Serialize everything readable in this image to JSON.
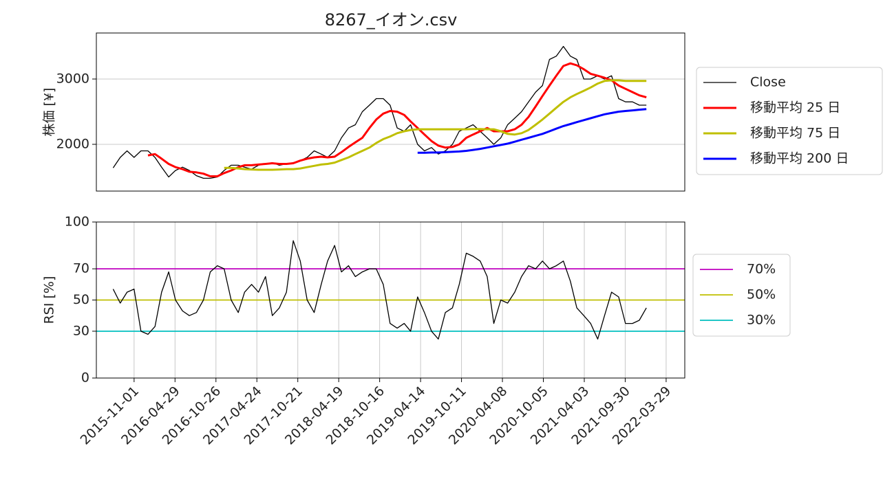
{
  "chart_data": [
    {
      "type": "line",
      "title": "8267_イオン.csv",
      "y_label": "株価 [¥]",
      "x": [
        "2015-08-01",
        "2015-09-01",
        "2015-10-01",
        "2015-11-01",
        "2015-12-01",
        "2016-01-01",
        "2016-02-01",
        "2016-03-01",
        "2016-04-01",
        "2016-05-01",
        "2016-06-01",
        "2016-07-01",
        "2016-08-01",
        "2016-09-01",
        "2016-10-01",
        "2016-11-01",
        "2016-12-01",
        "2017-01-01",
        "2017-02-01",
        "2017-03-01",
        "2017-04-01",
        "2017-05-01",
        "2017-06-01",
        "2017-07-01",
        "2017-08-01",
        "2017-09-01",
        "2017-10-01",
        "2017-11-01",
        "2017-12-01",
        "2018-01-01",
        "2018-02-01",
        "2018-03-01",
        "2018-04-01",
        "2018-05-01",
        "2018-06-01",
        "2018-07-01",
        "2018-08-01",
        "2018-09-01",
        "2018-10-01",
        "2018-11-01",
        "2018-12-01",
        "2019-01-01",
        "2019-02-01",
        "2019-03-01",
        "2019-04-01",
        "2019-05-01",
        "2019-06-01",
        "2019-07-01",
        "2019-08-01",
        "2019-09-01",
        "2019-10-01",
        "2019-11-01",
        "2019-12-01",
        "2020-01-01",
        "2020-02-01",
        "2020-03-01",
        "2020-04-01",
        "2020-05-01",
        "2020-06-01",
        "2020-07-01",
        "2020-08-01",
        "2020-09-01",
        "2020-10-01",
        "2020-11-01",
        "2020-12-01",
        "2021-01-01",
        "2021-02-01",
        "2021-03-01",
        "2021-04-01",
        "2021-05-01",
        "2021-06-01",
        "2021-07-01",
        "2021-08-01",
        "2021-09-01",
        "2021-10-01",
        "2021-11-01",
        "2021-12-01",
        "2022-01-01"
      ],
      "series": [
        {
          "name": "Close",
          "color": "#000000",
          "linewidth": 1.3,
          "values": [
            1640,
            1800,
            1900,
            1800,
            1900,
            1900,
            1800,
            1650,
            1500,
            1600,
            1650,
            1600,
            1520,
            1480,
            1480,
            1500,
            1600,
            1680,
            1680,
            1650,
            1620,
            1680,
            1700,
            1720,
            1680,
            1700,
            1720,
            1750,
            1800,
            1900,
            1850,
            1800,
            1900,
            2100,
            2250,
            2300,
            2500,
            2600,
            2700,
            2700,
            2600,
            2250,
            2200,
            2300,
            2000,
            1900,
            1950,
            1850,
            1900,
            2000,
            2200,
            2250,
            2300,
            2200,
            2100,
            2000,
            2100,
            2300,
            2400,
            2500,
            2650,
            2800,
            2900,
            3300,
            3350,
            3500,
            3350,
            3300,
            3000,
            3000,
            3050,
            3000,
            3050,
            2700,
            2650,
            2650,
            2600,
            2600
          ]
        },
        {
          "name": "移動平均 25 日",
          "color": "#ff0000",
          "linewidth": 3,
          "values": [
            null,
            null,
            null,
            null,
            null,
            1830,
            1850,
            1780,
            1700,
            1650,
            1620,
            1580,
            1570,
            1550,
            1510,
            1510,
            1560,
            1600,
            1650,
            1680,
            1680,
            1690,
            1700,
            1710,
            1700,
            1700,
            1710,
            1750,
            1780,
            1800,
            1810,
            1800,
            1810,
            1880,
            1960,
            2030,
            2100,
            2250,
            2380,
            2470,
            2510,
            2500,
            2450,
            2350,
            2250,
            2150,
            2050,
            1980,
            1950,
            1960,
            2000,
            2100,
            2150,
            2200,
            2250,
            2200,
            2200,
            2200,
            2230,
            2300,
            2420,
            2580,
            2740,
            2900,
            3050,
            3200,
            3240,
            3210,
            3150,
            3080,
            3050,
            3020,
            2980,
            2900,
            2850,
            2800,
            2750,
            2720
          ]
        },
        {
          "name": "移動平均 75 日",
          "color": "#bfbf00",
          "linewidth": 3,
          "values": [
            null,
            null,
            null,
            null,
            null,
            null,
            null,
            null,
            null,
            null,
            null,
            null,
            null,
            null,
            null,
            null,
            1640,
            1640,
            1630,
            1620,
            1615,
            1610,
            1610,
            1610,
            1615,
            1620,
            1620,
            1630,
            1650,
            1670,
            1690,
            1700,
            1720,
            1760,
            1800,
            1850,
            1900,
            1950,
            2020,
            2080,
            2120,
            2170,
            2200,
            2220,
            2230,
            2230,
            2230,
            2230,
            2230,
            2230,
            2230,
            2230,
            2235,
            2235,
            2230,
            2230,
            2200,
            2160,
            2150,
            2170,
            2220,
            2300,
            2380,
            2470,
            2560,
            2650,
            2720,
            2770,
            2820,
            2870,
            2930,
            2970,
            2980,
            2980,
            2970,
            2970,
            2970,
            2970
          ]
        },
        {
          "name": "移動平均 200 日",
          "color": "#0000ff",
          "linewidth": 3,
          "values": [
            null,
            null,
            null,
            null,
            null,
            null,
            null,
            null,
            null,
            null,
            null,
            null,
            null,
            null,
            null,
            null,
            null,
            null,
            null,
            null,
            null,
            null,
            null,
            null,
            null,
            null,
            null,
            null,
            null,
            null,
            null,
            null,
            null,
            null,
            null,
            null,
            null,
            null,
            null,
            null,
            null,
            null,
            null,
            null,
            1870,
            1870,
            1875,
            1875,
            1880,
            1885,
            1890,
            1900,
            1915,
            1930,
            1950,
            1970,
            1990,
            2010,
            2040,
            2070,
            2100,
            2130,
            2160,
            2200,
            2240,
            2280,
            2310,
            2340,
            2370,
            2400,
            2430,
            2460,
            2480,
            2500,
            2510,
            2520,
            2530,
            2540
          ]
        }
      ],
      "xlim": [
        "2015-05-19",
        "2022-06-19"
      ],
      "ylim": [
        1284,
        3705
      ],
      "yticks": [
        2000,
        3000
      ],
      "grid": "y",
      "legend": "right"
    },
    {
      "type": "line",
      "y_label": "RSI [%]",
      "x": [
        "2015-08-01",
        "2015-09-01",
        "2015-10-01",
        "2015-11-01",
        "2015-12-01",
        "2016-01-01",
        "2016-02-01",
        "2016-03-01",
        "2016-04-01",
        "2016-05-01",
        "2016-06-01",
        "2016-07-01",
        "2016-08-01",
        "2016-09-01",
        "2016-10-01",
        "2016-11-01",
        "2016-12-01",
        "2017-01-01",
        "2017-02-01",
        "2017-03-01",
        "2017-04-01",
        "2017-05-01",
        "2017-06-01",
        "2017-07-01",
        "2017-08-01",
        "2017-09-01",
        "2017-10-01",
        "2017-11-01",
        "2017-12-01",
        "2018-01-01",
        "2018-02-01",
        "2018-03-01",
        "2018-04-01",
        "2018-05-01",
        "2018-06-01",
        "2018-07-01",
        "2018-08-01",
        "2018-09-01",
        "2018-10-01",
        "2018-11-01",
        "2018-12-01",
        "2019-01-01",
        "2019-02-01",
        "2019-03-01",
        "2019-04-01",
        "2019-05-01",
        "2019-06-01",
        "2019-07-01",
        "2019-08-01",
        "2019-09-01",
        "2019-10-01",
        "2019-11-01",
        "2019-12-01",
        "2020-01-01",
        "2020-02-01",
        "2020-03-01",
        "2020-04-01",
        "2020-05-01",
        "2020-06-01",
        "2020-07-01",
        "2020-08-01",
        "2020-09-01",
        "2020-10-01",
        "2020-11-01",
        "2020-12-01",
        "2021-01-01",
        "2021-02-01",
        "2021-03-01",
        "2021-04-01",
        "2021-05-01",
        "2021-06-01",
        "2021-07-01",
        "2021-08-01",
        "2021-09-01",
        "2021-10-01",
        "2021-11-01",
        "2021-12-01",
        "2022-01-01"
      ],
      "series": [
        {
          "color": "#000000",
          "linewidth": 1.3,
          "values": [
            57,
            48,
            55,
            57,
            30,
            28,
            33,
            55,
            68,
            50,
            43,
            40,
            42,
            50,
            68,
            72,
            70,
            50,
            42,
            55,
            60,
            55,
            65,
            40,
            45,
            55,
            88,
            75,
            50,
            42,
            60,
            75,
            85,
            68,
            72,
            65,
            68,
            70,
            70,
            60,
            35,
            32,
            35,
            30,
            52,
            42,
            30,
            25,
            42,
            45,
            60,
            80,
            78,
            75,
            65,
            35,
            50,
            48,
            55,
            65,
            72,
            70,
            75,
            70,
            72,
            75,
            62,
            45,
            40,
            35,
            25,
            40,
            55,
            52,
            35,
            35,
            37,
            45
          ]
        }
      ],
      "hlines": [
        {
          "name": "70%",
          "value": 70,
          "color": "#bf00bf"
        },
        {
          "name": "50%",
          "value": 50,
          "color": "#bfbf00"
        },
        {
          "name": "30%",
          "value": 30,
          "color": "#00bfbf"
        }
      ],
      "xlim": [
        "2015-05-19",
        "2022-06-19"
      ],
      "ylim": [
        0,
        100
      ],
      "yticks": [
        0,
        30,
        50,
        70,
        100
      ],
      "xticks": [
        "2015-11-01",
        "2016-04-29",
        "2016-10-26",
        "2017-04-24",
        "2017-10-21",
        "2018-04-19",
        "2018-10-16",
        "2019-04-14",
        "2019-10-11",
        "2020-04-08",
        "2020-10-05",
        "2021-04-03",
        "2021-09-30",
        "2022-03-29"
      ],
      "grid": "x",
      "legend": "right"
    }
  ]
}
